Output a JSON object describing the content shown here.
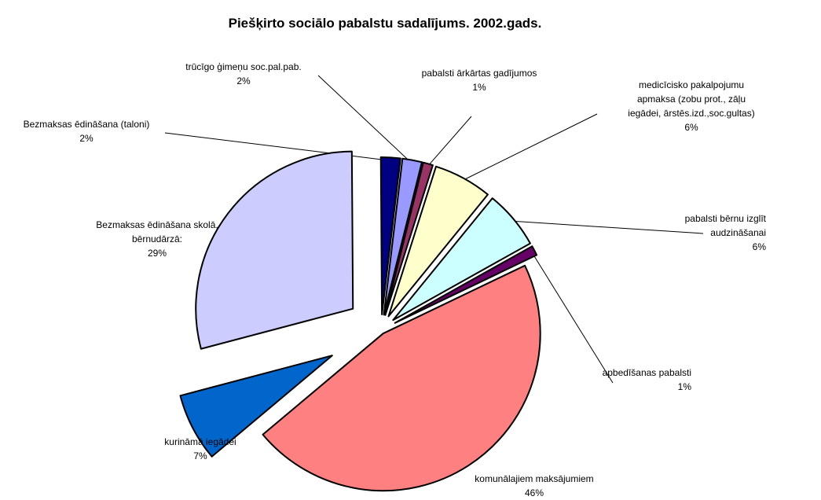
{
  "chart_data": {
    "type": "pie",
    "title": "Piešķirto sociālo pabalstu sadalījums. 2002.gads.",
    "slices": [
      {
        "label_lines": [
          "pabalsti ārkārtas gadījumos"
        ],
        "percent_label": "1%",
        "value": 1,
        "color": "#993366"
      },
      {
        "label_lines": [
          "medicīcisko pakalpojumu",
          "apmaksa (zobu prot., zāļu",
          "iegādei, ārstēs.izd.,soc.gultas)"
        ],
        "percent_label": "6%",
        "value": 6,
        "color": "#FFFFCC"
      },
      {
        "label_lines": [
          "pabalsti bērnu izglīt",
          "audzināšanai"
        ],
        "percent_label": "6%",
        "value": 6,
        "color": "#CCFFFF"
      },
      {
        "label_lines": [
          "apbedīšanas pabalsti"
        ],
        "percent_label": "1%",
        "value": 1,
        "color": "#660066"
      },
      {
        "label_lines": [
          "komunālajiem maksājumiem"
        ],
        "percent_label": "46%",
        "value": 46,
        "color": "#FF8080"
      },
      {
        "label_lines": [
          "kurināmā iegādei"
        ],
        "percent_label": "7%",
        "value": 7,
        "color": "#0066CC"
      },
      {
        "label_lines": [
          "Bezmaksas ēdināšana skolā,",
          "bērnudārzā:"
        ],
        "percent_label": "29%",
        "value": 29,
        "color": "#CCCCFF"
      },
      {
        "label_lines": [
          "Bezmaksas ēdināšana (taloni)"
        ],
        "percent_label": "2%",
        "value": 2,
        "color": "#000080"
      },
      {
        "label_lines": [
          "trūcīgo ģimeņu soc.pal.pab."
        ],
        "percent_label": "2%",
        "value": 2,
        "color": "#9999FF"
      }
    ],
    "legend": "none"
  }
}
